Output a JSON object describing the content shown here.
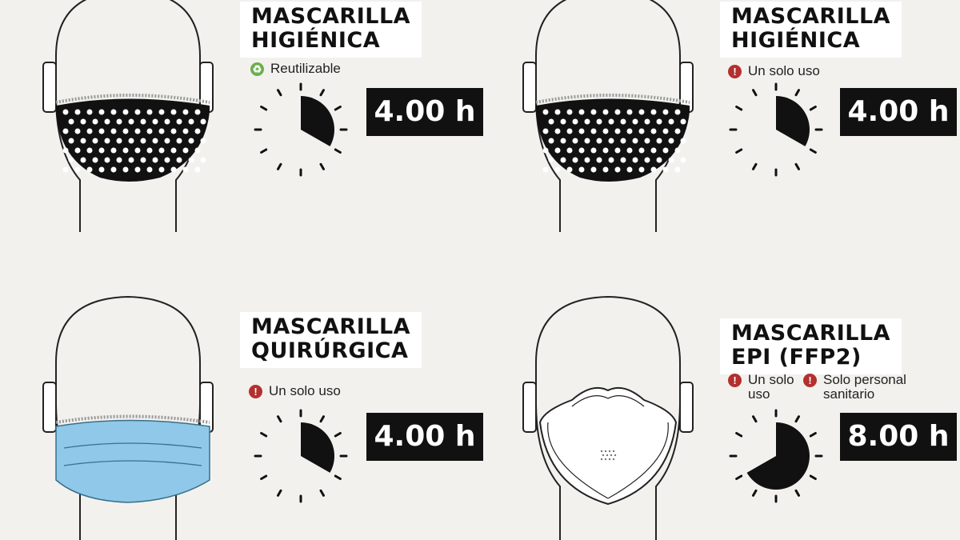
{
  "colors": {
    "background": "#f3f1ee",
    "warning": "#b3302f",
    "reusable": "#6ab04c",
    "surgical_mask": "#8fc8e8",
    "hours_box": "#111111"
  },
  "panels": [
    {
      "title_line1": "MASCARILLA",
      "title_line2": "HIGIÉNICA",
      "tags": [
        {
          "icon": "recycle-icon",
          "text": "Reutilizable"
        }
      ],
      "mask": "dotted-cloth",
      "hours_label": "4.00 h",
      "hours_fraction": 0.333
    },
    {
      "title_line1": "MASCARILLA",
      "title_line2": "HIGIÉNICA",
      "tags": [
        {
          "icon": "warning-icon",
          "text": "Un solo uso"
        }
      ],
      "mask": "dotted-cloth",
      "hours_label": "4.00 h",
      "hours_fraction": 0.333
    },
    {
      "title_line1": "MASCARILLA",
      "title_line2": "QUIRÚRGICA",
      "tags": [
        {
          "icon": "warning-icon",
          "text": "Un solo uso"
        }
      ],
      "mask": "surgical",
      "hours_label": "4.00 h",
      "hours_fraction": 0.333
    },
    {
      "title_line1": "MASCARILLA",
      "title_line2": "EPI (FFP2)",
      "tags": [
        {
          "icon": "warning-icon",
          "text_line1": "Un solo",
          "text_line2": "uso"
        },
        {
          "icon": "warning-icon",
          "text_line1": "Solo personal",
          "text_line2": "sanitario"
        }
      ],
      "mask": "ffp2",
      "hours_label": "8.00 h",
      "hours_fraction": 0.667
    }
  ]
}
